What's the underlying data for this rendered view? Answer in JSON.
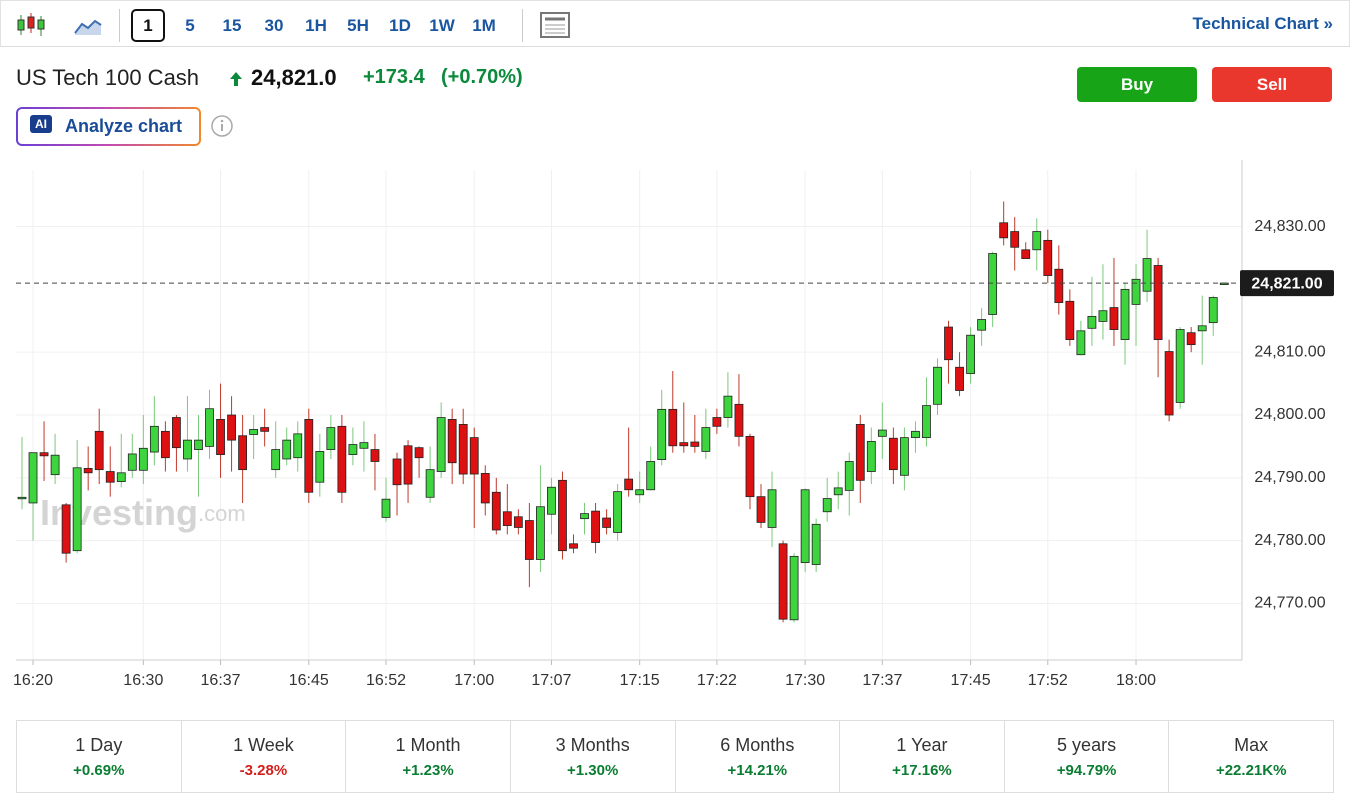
{
  "toolbar": {
    "intervals": [
      "1",
      "5",
      "15",
      "30",
      "1H",
      "5H",
      "1D",
      "1W",
      "1M"
    ],
    "link": "Technical Chart"
  },
  "header": {
    "name": "US Tech 100 Cash",
    "price": "24,821.0",
    "change": "+173.4",
    "change_pct": "(+0.70%)",
    "buy": "Buy",
    "sell": "Sell",
    "ai_badge": "AI",
    "analyze": "Analyze chart"
  },
  "watermark": {
    "brand": "Investing",
    "suffix": ".com"
  },
  "chart_data": {
    "type": "candlestick",
    "up_color": "#3ed43e",
    "down_color": "#dd1111",
    "grid": true,
    "categories": [
      null,
      "16:20",
      null,
      null,
      null,
      null,
      null,
      null,
      null,
      null,
      null,
      "16:30",
      null,
      null,
      null,
      null,
      null,
      null,
      "16:37",
      null,
      null,
      null,
      null,
      null,
      null,
      null,
      "16:45",
      null,
      null,
      null,
      null,
      null,
      null,
      "16:52",
      null,
      null,
      null,
      null,
      null,
      null,
      null,
      "17:00",
      null,
      null,
      null,
      null,
      null,
      null,
      "17:07",
      null,
      null,
      null,
      null,
      null,
      null,
      null,
      "17:15",
      null,
      null,
      null,
      null,
      null,
      null,
      "17:22",
      null,
      null,
      null,
      null,
      null,
      null,
      null,
      "17:30",
      null,
      null,
      null,
      null,
      null,
      null,
      "17:37",
      null,
      null,
      null,
      null,
      null,
      null,
      null,
      "17:45",
      null,
      null,
      null,
      null,
      null,
      null,
      "17:52",
      null,
      null,
      null,
      null,
      null,
      null,
      null,
      "18:00",
      null,
      null,
      null,
      null,
      null,
      null,
      null,
      null
    ],
    "open": [
      24786.9,
      24786,
      24794,
      24790.5,
      24785.7,
      24778.4,
      24791.5,
      24797.4,
      24791,
      24789.4,
      24791.2,
      24791.2,
      24794.1,
      24797.4,
      24799.6,
      24793,
      24794.5,
      24795,
      24799.3,
      24800,
      24796.7,
      24796.9,
      24798,
      24791.3,
      24793,
      24793.2,
      24799.3,
      24789.3,
      24794.5,
      24798.2,
      24793.7,
      24794.7,
      24794.5,
      24783.7,
      24793,
      24795.1,
      24794.8,
      24786.9,
      24791,
      24799.3,
      24798.5,
      24796.4,
      24790.7,
      24787.7,
      24784.6,
      24783.8,
      24783.2,
      24777,
      24784.2,
      24789.6,
      24779.5,
      24783.5,
      24784.7,
      24783.6,
      24781.3,
      24789.8,
      24787.3,
      24788.1,
      24792.9,
      24800.9,
      24795.6,
      24795.7,
      24794.2,
      24799.6,
      24799.6,
      24801.7,
      24796.6,
      24787,
      24782.1,
      24779.5,
      24767.4,
      24776.5,
      24776.2,
      24784.6,
      24787.3,
      24788,
      24798.5,
      24791,
      24796.6,
      24796.3,
      24790.4,
      24796.4,
      24796.4,
      24801.7,
      24814,
      24807.6,
      24806.6,
      24813.5,
      24816,
      24830.6,
      24829.2,
      24826.3,
      24826.3,
      24827.8,
      24823.2,
      24818.1,
      24809.6,
      24813.8,
      24814.9,
      24817.1,
      24812,
      24817.6,
      24819.7,
      24823.8,
      24810.1,
      24802,
      24813.1,
      24813.4,
      24814.7,
      24821
    ],
    "high": [
      24796.5,
      24794,
      24799,
      24797,
      24786,
      24796,
      24795,
      24801,
      24795,
      24797,
      24797,
      24800,
      24803,
      24799,
      24800,
      24803,
      24800,
      24804,
      24805,
      24803,
      24800,
      24800,
      24801,
      24799,
      24798,
      24799,
      24801,
      24797,
      24800,
      24800,
      24798,
      24799,
      24797,
      24790,
      24794,
      24796,
      24795,
      24795,
      24802,
      24801,
      24801,
      24798,
      24792,
      24790,
      24789,
      24785,
      24786,
      24792,
      24790,
      24791,
      24781,
      24786,
      24786,
      24785,
      24789,
      24798,
      24791,
      24795,
      24804,
      24807,
      24802,
      24800,
      24801,
      24801,
      24806.8,
      24806.5,
      24797,
      24789,
      24791,
      24780,
      24778,
      24788.3,
      24783.5,
      24790,
      24791,
      24794,
      24800,
      24798,
      24802,
      24798,
      24798,
      24799,
      24806,
      24809,
      24815,
      24810,
      24814,
      24817,
      24826,
      24834,
      24831.5,
      24827.5,
      24831.3,
      24829.5,
      24827,
      24820,
      24815,
      24822,
      24824,
      24825,
      24821,
      24824,
      24829.5,
      24825,
      24812,
      24814,
      24814,
      24819,
      24819,
      24821
    ],
    "low": [
      24785,
      24780,
      24789.5,
      24789,
      24776.5,
      24778,
      24788,
      24789,
      24787,
      24788.5,
      24790,
      24789,
      24792,
      24791,
      24791,
      24791,
      24787,
      24793,
      24790,
      24791,
      24786,
      24793,
      24795,
      24790,
      24792,
      24791,
      24786,
      24787,
      24793,
      24786,
      24792,
      24791,
      24788,
      24783,
      24784,
      24786,
      24790,
      24786,
      24790,
      24789,
      24789,
      24782,
      24784,
      24781,
      24781,
      24781,
      24772.6,
      24775,
      24781,
      24777,
      24778,
      24781,
      24778,
      24781,
      24780,
      24787,
      24786,
      24788,
      24792,
      24794,
      24794,
      24794,
      24793,
      24797,
      24798,
      24795,
      24785,
      24782,
      24779,
      24767,
      24767,
      24775,
      24775,
      24783,
      24785,
      24784,
      24786,
      24789,
      24793,
      24789,
      24788,
      24794,
      24795,
      24800,
      24805,
      24803,
      24805,
      24811,
      24814,
      24827,
      24823,
      24825,
      24823,
      24821,
      24816,
      24811,
      24809.5,
      24811,
      24812,
      24811,
      24808,
      24811,
      24818,
      24806,
      24799,
      24801,
      24810,
      24808,
      24812.6,
      24821
    ],
    "close": [
      24786.9,
      24794,
      24793.5,
      24793.6,
      24778,
      24791.6,
      24790.8,
      24791.3,
      24789.3,
      24790.8,
      24793.8,
      24794.7,
      24798.2,
      24793.2,
      24794.8,
      24796,
      24796,
      24801,
      24793.7,
      24796,
      24791.3,
      24797.7,
      24797.4,
      24794.5,
      24796,
      24797,
      24787.7,
      24794.2,
      24798,
      24787.7,
      24795.3,
      24795.6,
      24792.6,
      24786.6,
      24788.9,
      24789,
      24793.2,
      24791.3,
      24799.6,
      24792.4,
      24790.6,
      24790.6,
      24786,
      24781.7,
      24782.4,
      24782.1,
      24777,
      24785.4,
      24788.5,
      24778.4,
      24778.8,
      24784.3,
      24779.7,
      24782.1,
      24787.8,
      24788.1,
      24788.1,
      24792.6,
      24800.9,
      24795.1,
      24795.1,
      24795,
      24798,
      24798.2,
      24803,
      24796.6,
      24787,
      24782.9,
      24788.1,
      24767.5,
      24777.5,
      24788.1,
      24782.6,
      24786.7,
      24788.4,
      24792.6,
      24789.6,
      24795.8,
      24797.6,
      24791.3,
      24796.4,
      24797.4,
      24801.5,
      24807.6,
      24808.8,
      24803.9,
      24812.7,
      24815.2,
      24825.7,
      24828.2,
      24826.7,
      24824.9,
      24829.2,
      24822.2,
      24817.9,
      24812,
      24813.4,
      24815.7,
      24816.6,
      24813.6,
      24820,
      24821.6,
      24824.9,
      24812,
      24800,
      24813.6,
      24811.2,
      24814.2,
      24818.7,
      24821
    ],
    "ylim": [
      24761,
      24839
    ],
    "yticks": [
      {
        "value": 24770,
        "label": "24,770.00"
      },
      {
        "value": 24780,
        "label": "24,780.00"
      },
      {
        "value": 24790,
        "label": "24,790.00"
      },
      {
        "value": 24800,
        "label": "24,800.00"
      },
      {
        "value": 24810,
        "label": "24,810.00"
      },
      {
        "value": 24830,
        "label": "24,830.00"
      }
    ],
    "last_price": {
      "value": 24821,
      "label": "24,821.00"
    }
  },
  "periods": [
    {
      "label": "1 Day",
      "change": "+0.69%",
      "color": "#0a7d32"
    },
    {
      "label": "1 Week",
      "change": "-3.28%",
      "color": "#d3201c"
    },
    {
      "label": "1 Month",
      "change": "+1.23%",
      "color": "#0a7d32"
    },
    {
      "label": "3 Months",
      "change": "+1.30%",
      "color": "#0a7d32"
    },
    {
      "label": "6 Months",
      "change": "+14.21%",
      "color": "#0a7d32"
    },
    {
      "label": "1 Year",
      "change": "+17.16%",
      "color": "#0a7d32"
    },
    {
      "label": "5 years",
      "change": "+94.79%",
      "color": "#0a7d32"
    },
    {
      "label": "Max",
      "change": "+22.21K%",
      "color": "#0a7d32"
    }
  ]
}
